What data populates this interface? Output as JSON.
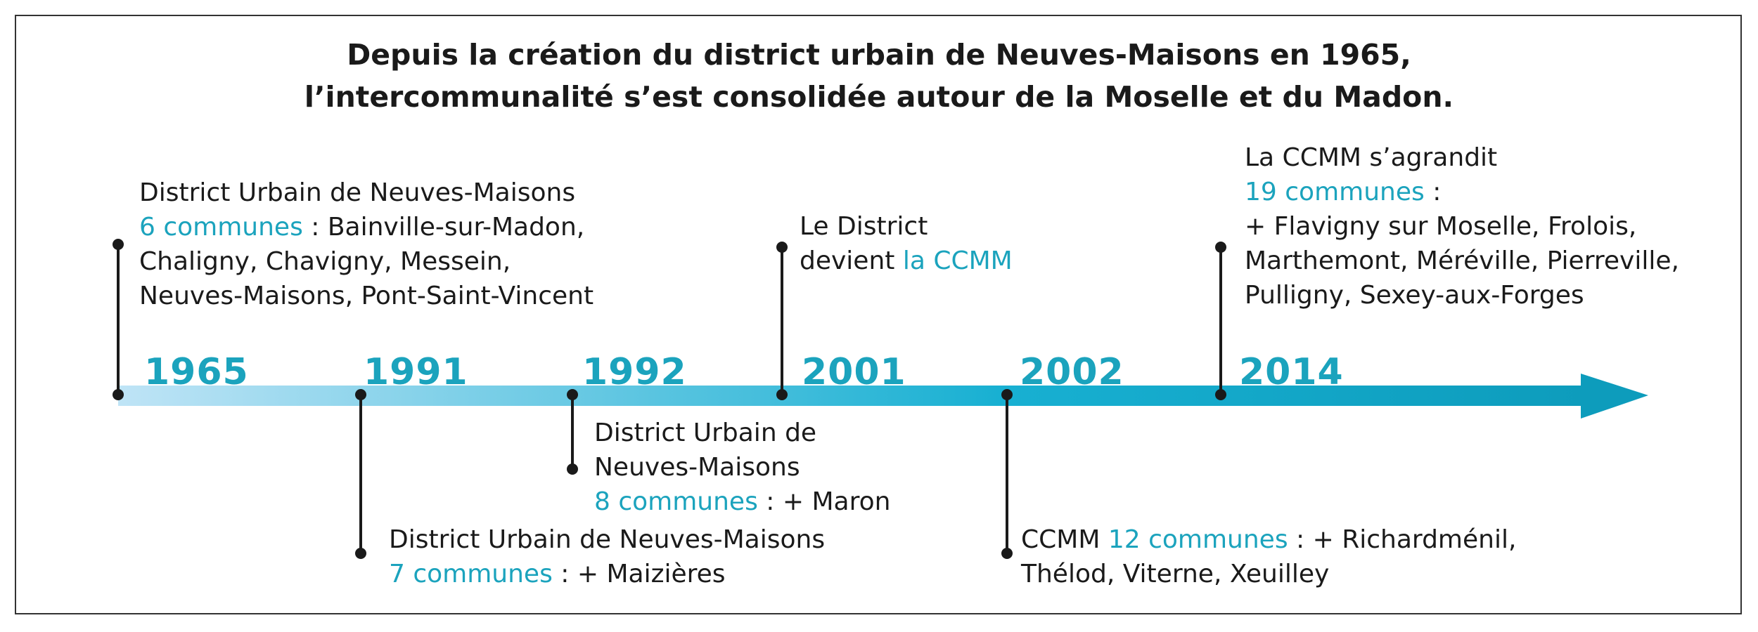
{
  "title": {
    "line1": "Depuis la création du district urbain de Neuves-Maisons en 1965,",
    "line2": "l’intercommunalité s’est consolidée autour de la Moselle et du Madon."
  },
  "colors": {
    "accent": "#1ba3bd",
    "arrow_start": "#bfe4f6",
    "arrow_end": "#0d9cbc",
    "text": "#1a1a1a"
  },
  "years": [
    "1965",
    "1991",
    "1992",
    "2001",
    "2002",
    "2014"
  ],
  "events": [
    {
      "year": "1965",
      "lines": [
        {
          "text": "District Urbain de Neuves-Maisons"
        },
        {
          "hl": "6 communes",
          "text": " : Bainville-sur-Madon,"
        },
        {
          "text": "Chaligny, Chavigny, Messein,"
        },
        {
          "text": "Neuves-Maisons, Pont-Saint-Vincent"
        }
      ]
    },
    {
      "year": "1991",
      "lines": [
        {
          "text": "District Urbain de Neuves-Maisons"
        },
        {
          "hl": "7 communes",
          "text": " : + Maizières"
        }
      ]
    },
    {
      "year": "1992",
      "lines": [
        {
          "text": "District Urbain de"
        },
        {
          "text": "Neuves-Maisons"
        },
        {
          "hl": "8 communes",
          "text": " : + Maron"
        }
      ]
    },
    {
      "year": "2001",
      "lines": [
        {
          "text": "Le District"
        },
        {
          "text": "devient ",
          "hl_after": "la CCMM"
        }
      ]
    },
    {
      "year": "2002",
      "lines": [
        {
          "text": "CCMM ",
          "hl_after": "12 communes",
          "text_after": " : + Richardménil,"
        },
        {
          "text": "Thélod, Viterne, Xeuilley"
        }
      ]
    },
    {
      "year": "2014",
      "lines": [
        {
          "text": "La CCMM s’agrandit"
        },
        {
          "hl": "19 communes",
          "text": " :"
        },
        {
          "text": "+ Flavigny sur Moselle, Frolois,"
        },
        {
          "text": "Marthemont, Méréville, Pierreville,"
        },
        {
          "text": "Pulligny, Sexey-aux-Forges"
        }
      ]
    }
  ]
}
